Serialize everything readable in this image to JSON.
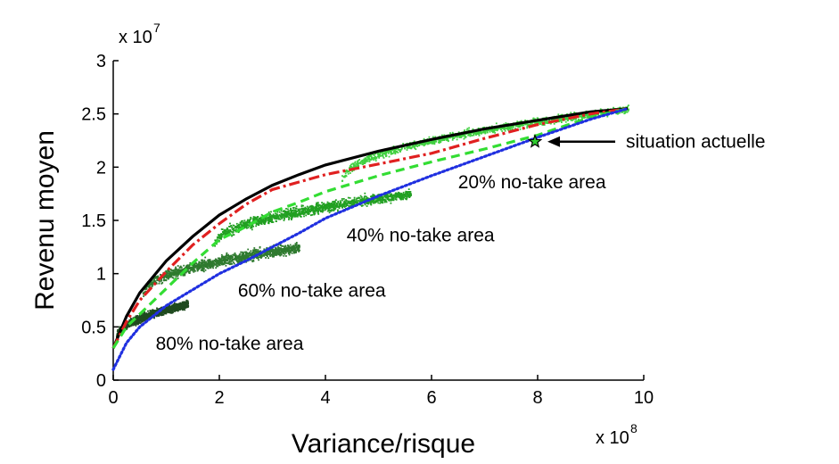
{
  "chart_data": {
    "type": "scatter",
    "xlabel": "Variance/risque",
    "ylabel": "Revenu moyen",
    "xlim": [
      0,
      10
    ],
    "ylim": [
      0,
      3
    ],
    "x_multiplier": "x 10",
    "x_multiplier_exp": "8",
    "y_multiplier": "x 10",
    "y_multiplier_exp": "7",
    "x_ticks": [
      0,
      2,
      4,
      6,
      8,
      10
    ],
    "y_ticks": [
      0,
      0.5,
      1,
      1.5,
      2,
      2.5,
      3
    ],
    "x_tick_labels": [
      "0",
      "2",
      "4",
      "6",
      "8",
      "10"
    ],
    "y_tick_labels": [
      "0",
      "0.5",
      "1",
      "1.5",
      "2",
      "2.5",
      "3"
    ],
    "grid": false,
    "lines": [
      {
        "color": "#000000",
        "style": "solid",
        "points": [
          [
            0,
            0.3
          ],
          [
            0.25,
            0.6
          ],
          [
            0.5,
            0.82
          ],
          [
            1,
            1.12
          ],
          [
            1.5,
            1.35
          ],
          [
            2,
            1.55
          ],
          [
            2.5,
            1.7
          ],
          [
            3,
            1.83
          ],
          [
            3.5,
            1.93
          ],
          [
            4,
            2.02
          ],
          [
            5,
            2.15
          ],
          [
            6,
            2.26
          ],
          [
            7,
            2.36
          ],
          [
            8,
            2.44
          ],
          [
            9,
            2.52
          ],
          [
            9.7,
            2.55
          ]
        ]
      },
      {
        "color": "#e02020",
        "style": "dashdot",
        "points": [
          [
            0,
            0.3
          ],
          [
            0.25,
            0.55
          ],
          [
            0.5,
            0.75
          ],
          [
            1,
            1.02
          ],
          [
            1.5,
            1.27
          ],
          [
            2,
            1.47
          ],
          [
            2.5,
            1.65
          ],
          [
            3,
            1.79
          ],
          [
            3.5,
            1.86
          ],
          [
            4,
            1.93
          ],
          [
            5,
            2.03
          ],
          [
            6,
            2.13
          ],
          [
            7,
            2.27
          ],
          [
            8,
            2.4
          ],
          [
            9,
            2.5
          ],
          [
            9.7,
            2.55
          ]
        ]
      },
      {
        "color": "#33dd33",
        "style": "dashed",
        "points": [
          [
            0,
            0.3
          ],
          [
            0.25,
            0.5
          ],
          [
            0.5,
            0.62
          ],
          [
            1,
            0.86
          ],
          [
            1.5,
            1.1
          ],
          [
            2,
            1.32
          ],
          [
            2.5,
            1.44
          ],
          [
            3,
            1.58
          ],
          [
            3.5,
            1.67
          ],
          [
            4,
            1.77
          ],
          [
            5,
            1.92
          ],
          [
            6,
            2.05
          ],
          [
            7,
            2.17
          ],
          [
            8,
            2.3
          ],
          [
            9,
            2.47
          ],
          [
            9.7,
            2.55
          ]
        ]
      },
      {
        "color": "#2030e0",
        "style": "dotted",
        "points": [
          [
            0,
            0.1
          ],
          [
            0.25,
            0.35
          ],
          [
            0.5,
            0.5
          ],
          [
            1,
            0.7
          ],
          [
            1.5,
            0.85
          ],
          [
            2,
            1.0
          ],
          [
            2.5,
            1.12
          ],
          [
            3,
            1.25
          ],
          [
            3.5,
            1.38
          ],
          [
            4,
            1.52
          ],
          [
            5,
            1.73
          ],
          [
            6,
            1.92
          ],
          [
            7,
            2.1
          ],
          [
            8,
            2.28
          ],
          [
            9,
            2.45
          ],
          [
            9.7,
            2.55
          ]
        ]
      }
    ],
    "clouds": [
      {
        "label": "80% no-take area",
        "color": "#1f4a1f",
        "x_range": [
          0.05,
          1.4
        ],
        "y_start": 0.4,
        "y_end": 0.72,
        "spread": 0.06
      },
      {
        "label": "60% no-take area",
        "color": "#2f7a2f",
        "x_range": [
          0.55,
          3.5
        ],
        "y_start": 0.82,
        "y_end": 1.25,
        "spread": 0.08
      },
      {
        "label": "40% no-take area",
        "color": "#22a022",
        "x_range": [
          1.9,
          5.6
        ],
        "y_start": 1.28,
        "y_end": 1.75,
        "spread": 0.08
      },
      {
        "label": "20% no-take area",
        "color": "#40d040",
        "x_range": [
          4.3,
          9.7
        ],
        "y_start": 1.88,
        "y_end": 2.55,
        "spread": 0.06
      }
    ],
    "current_situation": {
      "label": "situation actuelle",
      "x": 7.95,
      "y": 2.24
    },
    "annotations": [
      {
        "text": "80% no-take area",
        "x": 0.8,
        "y": 0.35
      },
      {
        "text": "60% no-take area",
        "x": 2.35,
        "y": 0.85
      },
      {
        "text": "40% no-take area",
        "x": 4.4,
        "y": 1.37
      },
      {
        "text": "20% no-take area",
        "x": 6.5,
        "y": 1.87
      }
    ]
  }
}
